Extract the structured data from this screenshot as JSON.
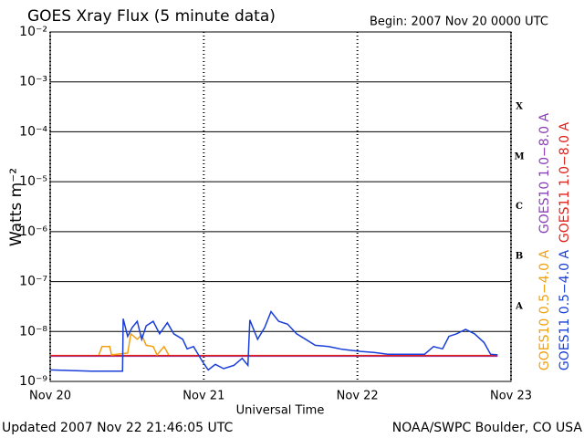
{
  "chart_data": {
    "type": "line",
    "title": "GOES Xray Flux (5 minute data)",
    "subtitle": "Begin:  2007 Nov 20 0000 UTC",
    "ylabel": "Watts m⁻²",
    "xlabel": "Universal Time",
    "footer_left": "Updated 2007 Nov 22 21:46:05 UTC",
    "footer_right": "NOAA/SWPC Boulder, CO USA",
    "log_y": true,
    "grid": true,
    "xlim": [
      0,
      72
    ],
    "xticks": [
      {
        "value": 0,
        "label": "Nov 20"
      },
      {
        "value": 24,
        "label": "Nov 21"
      },
      {
        "value": 48,
        "label": "Nov 22"
      },
      {
        "value": 72,
        "label": "Nov 23"
      }
    ],
    "ylim": [
      1e-09,
      0.01
    ],
    "yticks": [
      {
        "value": 1e-09,
        "label": "10⁻⁹"
      },
      {
        "value": 1e-08,
        "label": "10⁻⁸"
      },
      {
        "value": 1e-07,
        "label": "10⁻⁷"
      },
      {
        "value": 1e-06,
        "label": "10⁻⁶"
      },
      {
        "value": 1e-05,
        "label": "10⁻⁵"
      },
      {
        "value": 0.0001,
        "label": "10⁻⁴"
      },
      {
        "value": 0.001,
        "label": "10⁻³"
      },
      {
        "value": 0.01,
        "label": "10⁻²"
      }
    ],
    "band_labels": [
      "X",
      "M",
      "C",
      "B",
      "A"
    ],
    "series": [
      {
        "name": "GOES10 1.0−8.0 A",
        "color": "#8b3fb8",
        "x": [
          0,
          69.9
        ],
        "values": [
          3.2e-09,
          3.2e-09
        ]
      },
      {
        "name": "GOES11 1.0−8.0 A",
        "color": "#e0201b",
        "x": [
          0,
          35,
          69.9
        ],
        "values": [
          3.3e-09,
          3.3e-09,
          3.3e-09
        ]
      },
      {
        "name": "GOES10 0.5−4.0 A",
        "color": "#f0a010",
        "x": [
          7.6,
          8.1,
          9.3,
          9.6,
          12.1,
          12.6,
          13.6,
          14.3,
          15.0,
          16.1,
          16.7,
          17.8,
          18.5
        ],
        "values": [
          3.4e-09,
          5e-09,
          5e-09,
          3.4e-09,
          3.7e-09,
          9e-09,
          7e-09,
          8.5e-09,
          5.3e-09,
          5e-09,
          3.4e-09,
          5e-09,
          3.4e-09
        ]
      },
      {
        "name": "GOES11 0.5−4.0 A",
        "color": "#1a3fd8",
        "x": [
          0,
          6.4,
          11.3,
          11.4,
          12.1,
          12.8,
          13.6,
          14.3,
          15.0,
          16.1,
          17.1,
          18.3,
          19.3,
          20.7,
          21.4,
          22.4,
          23.8,
          24.7,
          25.8,
          27.1,
          28.7,
          30.0,
          30.9,
          31.2,
          32.4,
          33.5,
          34.5,
          35.7,
          37.1,
          38.5,
          39.9,
          41.4,
          43.5,
          45.6,
          48.5,
          50.6,
          52.8,
          58.5,
          59.9,
          61.3,
          62.3,
          63.5,
          64.9,
          66.3,
          67.8,
          68.8,
          69.9
        ],
        "values": [
          1.7e-09,
          1.6e-09,
          1.6e-09,
          1.8e-08,
          8e-09,
          1.2e-08,
          1.6e-08,
          7e-09,
          1.3e-08,
          1.6e-08,
          9e-09,
          1.5e-08,
          9e-09,
          7e-09,
          4.5e-09,
          5e-09,
          2.5e-09,
          1.7e-09,
          2.2e-09,
          1.8e-09,
          2.1e-09,
          2.9e-09,
          2.1e-09,
          1.7e-08,
          7e-09,
          1.2e-08,
          2.5e-08,
          1.6e-08,
          1.4e-08,
          9e-09,
          7e-09,
          5.3e-09,
          5e-09,
          4.4e-09,
          4e-09,
          3.8e-09,
          3.5e-09,
          3.5e-09,
          5e-09,
          4.5e-09,
          8e-09,
          9e-09,
          1.1e-08,
          9e-09,
          6e-09,
          3.5e-09,
          3.4e-09
        ]
      }
    ]
  }
}
